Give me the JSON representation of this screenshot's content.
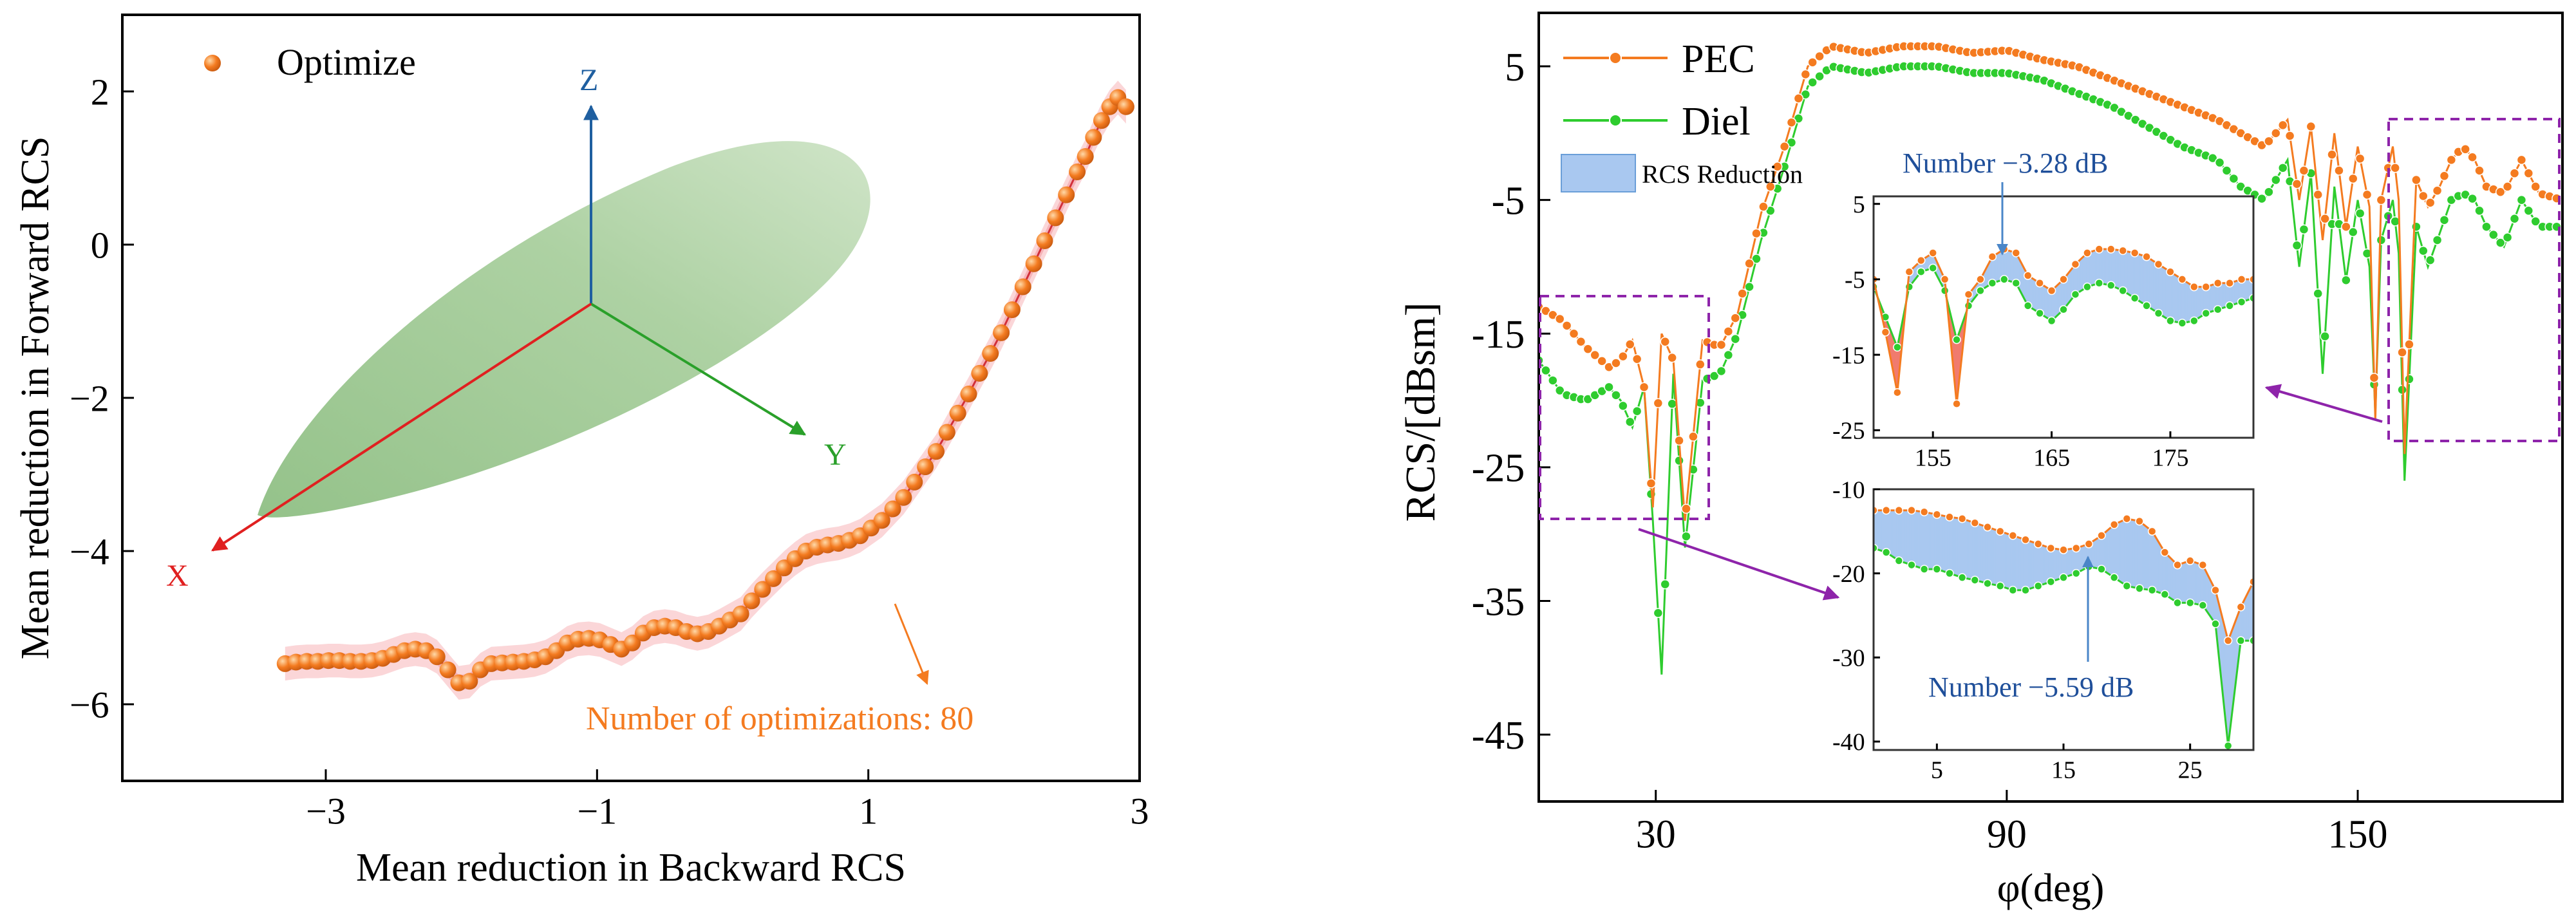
{
  "chart_data": [
    {
      "type": "scatter",
      "title": "",
      "xlabel": "Mean reduction in Backward RCS",
      "ylabel": "Mean reduction in Forward RCS",
      "xlim": [
        -4.5,
        3
      ],
      "ylim": [
        -7,
        3
      ],
      "x_ticks": [
        {
          "value": -3,
          "label": "−3"
        },
        {
          "value": -1,
          "label": "−1"
        },
        {
          "value": 1,
          "label": "1"
        },
        {
          "value": 3,
          "label": "3"
        }
      ],
      "y_ticks": [
        {
          "value": 2,
          "label": "2"
        },
        {
          "value": 0,
          "label": "0"
        },
        {
          "value": -2,
          "label": "−2"
        },
        {
          "value": -4,
          "label": "−4"
        },
        {
          "value": -6,
          "label": "−6"
        }
      ],
      "legend": [
        {
          "name": "Optimize",
          "color": "#f47b20"
        }
      ],
      "annotation": "Number of optimizations: 80",
      "inset_axes": {
        "z": "Z",
        "y": "Y",
        "x": "X"
      },
      "series": [
        {
          "name": "Optimize",
          "color": "#f47b20",
          "x": [
            -3.3,
            -3.22,
            -3.14,
            -3.06,
            -2.98,
            -2.9,
            -2.82,
            -2.74,
            -2.66,
            -2.58,
            -2.5,
            -2.42,
            -2.34,
            -2.26,
            -2.18,
            -2.1,
            -2.02,
            -1.94,
            -1.86,
            -1.78,
            -1.7,
            -1.62,
            -1.54,
            -1.46,
            -1.38,
            -1.3,
            -1.22,
            -1.14,
            -1.06,
            -0.98,
            -0.9,
            -0.82,
            -0.74,
            -0.66,
            -0.58,
            -0.5,
            -0.42,
            -0.34,
            -0.26,
            -0.18,
            -0.1,
            -0.02,
            0.06,
            0.14,
            0.22,
            0.3,
            0.38,
            0.46,
            0.54,
            0.62,
            0.7,
            0.78,
            0.86,
            0.94,
            1.02,
            1.1,
            1.18,
            1.26,
            1.34,
            1.42,
            1.5,
            1.58,
            1.66,
            1.74,
            1.82,
            1.9,
            1.98,
            2.06,
            2.14,
            2.22,
            2.3,
            2.38,
            2.46,
            2.54,
            2.6,
            2.66,
            2.72,
            2.78,
            2.84,
            2.9
          ],
          "y": [
            -5.47,
            -5.45,
            -5.44,
            -5.44,
            -5.43,
            -5.43,
            -5.44,
            -5.44,
            -5.43,
            -5.4,
            -5.35,
            -5.3,
            -5.28,
            -5.3,
            -5.38,
            -5.55,
            -5.72,
            -5.7,
            -5.55,
            -5.47,
            -5.46,
            -5.45,
            -5.44,
            -5.42,
            -5.38,
            -5.3,
            -5.2,
            -5.15,
            -5.14,
            -5.16,
            -5.22,
            -5.28,
            -5.2,
            -5.07,
            -5.0,
            -4.98,
            -5.0,
            -5.05,
            -5.08,
            -5.05,
            -4.98,
            -4.9,
            -4.82,
            -4.65,
            -4.5,
            -4.36,
            -4.22,
            -4.1,
            -4.0,
            -3.95,
            -3.92,
            -3.9,
            -3.86,
            -3.8,
            -3.7,
            -3.6,
            -3.45,
            -3.3,
            -3.1,
            -2.9,
            -2.7,
            -2.45,
            -2.2,
            -1.95,
            -1.68,
            -1.42,
            -1.15,
            -0.85,
            -0.55,
            -0.25,
            0.05,
            0.35,
            0.65,
            0.95,
            1.15,
            1.4,
            1.62,
            1.8,
            1.92,
            1.8
          ]
        }
      ]
    },
    {
      "type": "line",
      "title": "",
      "xlabel": "φ(deg)",
      "ylabel": "RCS/[dBsm]",
      "xlim": [
        10,
        185
      ],
      "ylim": [
        -50,
        9
      ],
      "x_ticks": [
        {
          "value": 30,
          "label": "30"
        },
        {
          "value": 90,
          "label": "90"
        },
        {
          "value": 150,
          "label": "150"
        }
      ],
      "y_ticks": [
        {
          "value": 5,
          "label": "5"
        },
        {
          "value": -5,
          "label": "-5"
        },
        {
          "value": -15,
          "label": "-15"
        },
        {
          "value": -25,
          "label": "-25"
        },
        {
          "value": -35,
          "label": "-35"
        },
        {
          "value": -45,
          "label": "-45"
        }
      ],
      "legend": [
        {
          "name": "PEC",
          "color": "#f47b20"
        },
        {
          "name": "Diel",
          "color": "#2ecc2e"
        },
        {
          "name": "RCS Reduction",
          "color": "#a9c8f0"
        }
      ],
      "series": [
        {
          "name": "PEC",
          "color": "#f47b20",
          "x": [
            10,
            14,
            18,
            22,
            24,
            26,
            28,
            29.5,
            31,
            33,
            35,
            38,
            41,
            44,
            48,
            52,
            56,
            60,
            66,
            72,
            78,
            84,
            90,
            96,
            102,
            108,
            114,
            120,
            126,
            130,
            134,
            138,
            140,
            142,
            144,
            146,
            148,
            150,
            152,
            153,
            154,
            156,
            157,
            158,
            160,
            162,
            164,
            166,
            168,
            170,
            172,
            175,
            178,
            181,
            185
          ],
          "y": [
            -13,
            -14,
            -16,
            -17.5,
            -17,
            -15.5,
            -19,
            -28,
            -15,
            -17,
            -29,
            -15.5,
            -16,
            -13.5,
            -6,
            -1,
            5,
            6.5,
            6,
            6.5,
            6.5,
            6,
            6.2,
            5.5,
            5,
            4,
            3,
            2,
            1,
            0,
            -1,
            1,
            -5,
            0.5,
            -8,
            0,
            -7,
            -1,
            -5.5,
            -21.5,
            -5,
            -1,
            -5,
            -24,
            -3.5,
            -5.5,
            -4,
            -2,
            -1,
            -2,
            -4,
            -4.5,
            -2,
            -4.5,
            -5
          ]
        },
        {
          "name": "Diel",
          "color": "#2ecc2e",
          "x": [
            10,
            14,
            18,
            22,
            24,
            26,
            28,
            29.5,
            31,
            33,
            35,
            38,
            41,
            44,
            48,
            52,
            56,
            60,
            66,
            72,
            78,
            84,
            90,
            96,
            102,
            108,
            114,
            120,
            126,
            130,
            134,
            138,
            140,
            142,
            144,
            146,
            148,
            150,
            152,
            153,
            154,
            156,
            157,
            158,
            160,
            162,
            164,
            166,
            168,
            170,
            172,
            175,
            178,
            181,
            185
          ],
          "y": [
            -17,
            -19.5,
            -20,
            -19,
            -20,
            -22,
            -19,
            -29,
            -40.5,
            -18,
            -31,
            -18.5,
            -18,
            -15,
            -8,
            -2.5,
            3.5,
            5,
            4.5,
            5,
            5,
            4.5,
            4.5,
            4,
            3,
            2,
            0.5,
            -1,
            -2,
            -4,
            -5,
            -2,
            -10,
            -3,
            -18,
            -4,
            -11,
            -5,
            -10,
            -21,
            -8,
            -5,
            -9,
            -26,
            -7,
            -10,
            -7.5,
            -5,
            -4.5,
            -5,
            -7,
            -8.5,
            -5,
            -7,
            -7
          ]
        }
      ],
      "inset_top": {
        "xlim": [
          150,
          182
        ],
        "ylim": [
          -26,
          6
        ],
        "x_ticks": [
          {
            "value": 155,
            "label": "155"
          },
          {
            "value": 165,
            "label": "165"
          },
          {
            "value": 175,
            "label": "175"
          }
        ],
        "y_ticks": [
          {
            "value": 5,
            "label": "5"
          },
          {
            "value": -5,
            "label": "-5"
          },
          {
            "value": -15,
            "label": "-15"
          },
          {
            "value": -25,
            "label": "-25"
          }
        ],
        "annotation": "Number −3.28 dB",
        "pec_x": [
          150,
          151,
          152,
          153,
          154,
          155,
          156,
          157,
          158,
          159,
          160,
          161,
          162,
          163,
          164,
          165,
          166,
          167,
          168,
          169,
          170,
          171,
          172,
          173,
          174,
          175,
          176,
          177,
          178,
          179,
          180,
          181,
          182
        ],
        "pec_y": [
          -5,
          -12,
          -20,
          -4,
          -2.5,
          -1.5,
          -5,
          -21.5,
          -7,
          -5,
          -2,
          -1,
          -1.5,
          -4.5,
          -5.5,
          -6.5,
          -5,
          -3,
          -1.5,
          -1,
          -1,
          -1.2,
          -1.5,
          -2,
          -3,
          -4,
          -5,
          -6,
          -6,
          -5.5,
          -5.5,
          -5,
          -5
        ],
        "diel_x": [
          150,
          151,
          152,
          153,
          154,
          155,
          156,
          157,
          158,
          159,
          160,
          161,
          162,
          163,
          164,
          165,
          166,
          167,
          168,
          169,
          170,
          171,
          172,
          173,
          174,
          175,
          176,
          177,
          178,
          179,
          180,
          181,
          182
        ],
        "diel_y": [
          -6,
          -10,
          -14,
          -6,
          -4,
          -3.5,
          -6.5,
          -13,
          -8.5,
          -6.5,
          -5.5,
          -5,
          -5.5,
          -8.5,
          -9.5,
          -10.5,
          -9,
          -7,
          -6,
          -5.5,
          -5.8,
          -6.5,
          -7.5,
          -8.5,
          -9.5,
          -10.5,
          -10.8,
          -10.5,
          -9.5,
          -9,
          -8.5,
          -8,
          -7.5
        ]
      },
      "inset_bottom": {
        "xlim": [
          0,
          30
        ],
        "ylim": [
          -41,
          -10
        ],
        "x_ticks": [
          {
            "value": 5,
            "label": "5"
          },
          {
            "value": 15,
            "label": "15"
          },
          {
            "value": 25,
            "label": "25"
          }
        ],
        "y_ticks": [
          {
            "value": -10,
            "label": "-10"
          },
          {
            "value": -20,
            "label": "-20"
          },
          {
            "value": -30,
            "label": "-30"
          },
          {
            "value": -40,
            "label": "-40"
          }
        ],
        "annotation": "Number −5.59 dB",
        "pec_x": [
          0,
          1,
          2,
          3,
          4,
          5,
          6,
          7,
          8,
          9,
          10,
          11,
          12,
          13,
          14,
          15,
          16,
          17,
          18,
          19,
          20,
          21,
          22,
          23,
          24,
          25,
          26,
          27,
          28,
          29,
          30
        ],
        "pec_y": [
          -12.5,
          -12.5,
          -12.5,
          -12.5,
          -12.7,
          -13,
          -13.3,
          -13.5,
          -14,
          -14.5,
          -15,
          -15.5,
          -16,
          -16.5,
          -17,
          -17.2,
          -17,
          -16.5,
          -15.5,
          -14.2,
          -13.5,
          -13.8,
          -15,
          -17.5,
          -19,
          -18.5,
          -19,
          -22,
          -28,
          -24,
          -21
        ],
        "diel_x": [
          0,
          1,
          2,
          3,
          4,
          5,
          6,
          7,
          8,
          9,
          10,
          11,
          12,
          13,
          14,
          15,
          16,
          17,
          18,
          19,
          20,
          21,
          22,
          23,
          24,
          25,
          26,
          27,
          28,
          29,
          30
        ],
        "diel_y": [
          -17,
          -17.5,
          -18.5,
          -19,
          -19.5,
          -19.5,
          -20,
          -20.5,
          -20.8,
          -21.2,
          -21.5,
          -22,
          -22,
          -21.5,
          -21,
          -20.5,
          -20,
          -19.2,
          -19.5,
          -20.5,
          -21.5,
          -21.8,
          -22,
          -22.5,
          -23.5,
          -23.5,
          -23.8,
          -26,
          -40.5,
          -28,
          -28
        ]
      }
    }
  ]
}
